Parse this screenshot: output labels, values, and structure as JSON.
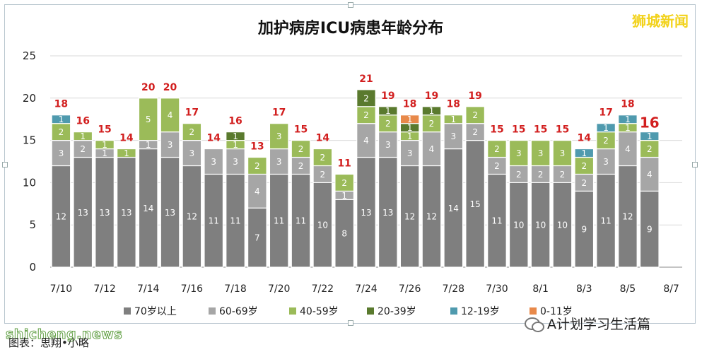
{
  "chart_data": {
    "type": "bar",
    "stacked": true,
    "title": "加护病房ICU病患年龄分布",
    "brand": "狮城新闻",
    "ylim": [
      0,
      25
    ],
    "yticks": [
      "0",
      "5",
      "10",
      "15",
      "20",
      "25"
    ],
    "xtick_labels": [
      "7/10",
      "7/12",
      "7/14",
      "7/16",
      "7/18",
      "7/20",
      "7/22",
      "7/24",
      "7/26",
      "7/28",
      "7/30",
      "8/1",
      "8/3",
      "8/5",
      "8/7"
    ],
    "legend_position": "bottom",
    "categories": [
      "7/10",
      "7/11",
      "7/12",
      "7/13",
      "7/14",
      "7/15",
      "7/16",
      "7/17",
      "7/18",
      "7/19",
      "7/20",
      "7/21",
      "7/22",
      "7/23",
      "7/24",
      "7/25",
      "7/26",
      "7/27",
      "7/28",
      "7/29",
      "7/30",
      "7/31",
      "8/1",
      "8/2",
      "8/3",
      "8/4",
      "8/5",
      "8/6",
      "8/7"
    ],
    "totals": [
      "18",
      "16",
      "15",
      "14",
      "20",
      "20",
      "17",
      "14",
      "16",
      "13",
      "17",
      "15",
      "14",
      "11",
      "21",
      "19",
      "18",
      "19",
      "18",
      "19",
      "15",
      "15",
      "15",
      "15",
      "14",
      "17",
      "18",
      "16",
      ""
    ],
    "series": [
      {
        "name": "70岁以上",
        "color": "#7f7f7f",
        "values": [
          12,
          13,
          13,
          13,
          14,
          13,
          12,
          11,
          11,
          7,
          11,
          11,
          10,
          8,
          13,
          13,
          12,
          12,
          14,
          15,
          11,
          10,
          10,
          10,
          9,
          11,
          12,
          9,
          0
        ]
      },
      {
        "name": "60-69岁",
        "color": "#a6a6a6",
        "values": [
          3,
          2,
          1,
          0,
          1,
          3,
          3,
          3,
          3,
          4,
          3,
          2,
          2,
          1,
          4,
          3,
          3,
          4,
          3,
          2,
          2,
          2,
          2,
          2,
          2,
          3,
          4,
          4,
          0
        ]
      },
      {
        "name": "40-59岁",
        "color": "#9bbb59",
        "values": [
          2,
          1,
          1,
          1,
          5,
          4,
          2,
          0,
          1,
          2,
          3,
          2,
          2,
          2,
          2,
          2,
          1,
          2,
          1,
          2,
          2,
          3,
          3,
          3,
          2,
          2,
          1,
          2,
          0
        ]
      },
      {
        "name": "20-39岁",
        "color": "#5a7a2e",
        "values": [
          0,
          0,
          0,
          0,
          0,
          0,
          0,
          0,
          1,
          0,
          0,
          0,
          0,
          0,
          2,
          1,
          1,
          1,
          0,
          0,
          0,
          0,
          0,
          0,
          0,
          0,
          0,
          0,
          0
        ]
      },
      {
        "name": "12-19岁",
        "color": "#4f9aae",
        "values": [
          1,
          0,
          0,
          0,
          0,
          0,
          0,
          0,
          0,
          0,
          0,
          0,
          0,
          0,
          0,
          0,
          0,
          0,
          0,
          0,
          0,
          0,
          0,
          0,
          1,
          1,
          1,
          1,
          0
        ]
      },
      {
        "name": "0-11岁",
        "color": "#e8894a",
        "values": [
          0,
          0,
          0,
          0,
          0,
          0,
          0,
          0,
          0,
          0,
          0,
          0,
          0,
          0,
          0,
          0,
          1,
          0,
          0,
          0,
          0,
          0,
          0,
          0,
          0,
          0,
          0,
          0,
          0
        ]
      }
    ],
    "series_labels": [
      [
        "12",
        "13",
        "13",
        "13",
        "14",
        "13",
        "12",
        "11",
        "11",
        "7",
        "11",
        "11",
        "10",
        "8",
        "13",
        "13",
        "12",
        "12",
        "14",
        "15",
        "11",
        "10",
        "10",
        "10",
        "9",
        "11",
        "12",
        "9",
        ""
      ],
      [
        "3",
        "2",
        "1",
        "",
        "1",
        "3",
        "3",
        "3",
        "3",
        "4",
        "3",
        "2",
        "2",
        "1",
        "4",
        "3",
        "3",
        "4",
        "3",
        "2",
        "2",
        "2",
        "2",
        "2",
        "2",
        "3",
        "4",
        "4",
        ""
      ],
      [
        "2",
        "1",
        "1",
        "1",
        "5",
        "4",
        "2",
        "",
        "1",
        "2",
        "3",
        "2",
        "2",
        "2",
        "2",
        "2",
        "1",
        "2",
        "1",
        "2",
        "2",
        "3",
        "3",
        "3",
        "2",
        "2",
        "1",
        "2",
        ""
      ],
      [
        "",
        "",
        "",
        "",
        "",
        "",
        "",
        "",
        "1",
        "",
        "",
        "",
        "",
        "",
        "2",
        "1",
        "1",
        "1",
        "",
        "",
        "",
        "",
        "",
        "",
        "",
        "",
        "",
        "",
        ""
      ],
      [
        "1",
        "",
        "",
        "",
        "",
        "",
        "",
        "",
        "",
        "",
        "",
        "",
        "",
        "",
        "",
        "",
        "",
        "",
        "",
        "",
        "",
        "",
        "",
        "",
        "1",
        "1",
        "1",
        "1",
        ""
      ],
      [
        "",
        "",
        "",
        "",
        "",
        "",
        "",
        "",
        "",
        "",
        "",
        "",
        "",
        "",
        "",
        "",
        "1",
        "",
        "",
        "",
        "",
        "",
        "",
        "",
        "",
        "",
        "",
        "",
        ""
      ]
    ]
  },
  "footer": {
    "watermark": "shicheng.news",
    "caption": "图表：思翔•小略",
    "wechat_label": "A计划学习生活篇"
  }
}
